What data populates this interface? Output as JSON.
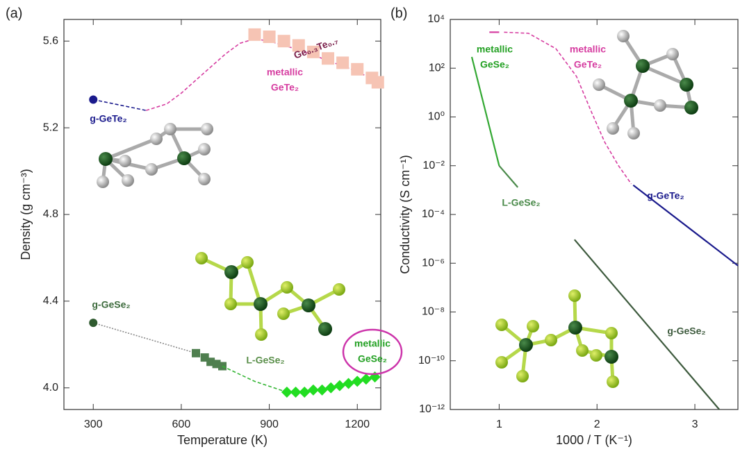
{
  "chart_data": [
    {
      "type": "line",
      "panel_label": "(a)",
      "xlabel": "Temperature (K)",
      "ylabel": "Density (g cm⁻³)",
      "xlim": [
        200,
        1280
      ],
      "ylim": [
        3.9,
        5.7
      ],
      "log_y": false,
      "xticks": [
        300,
        600,
        900,
        1200
      ],
      "yticks": [
        {
          "value": 4.0,
          "label": "4.0"
        },
        4.4,
        4.8,
        5.2,
        5.6
      ],
      "series": [
        {
          "color": "#1a1a8c",
          "dash": "dash",
          "marker": "none",
          "x": [
            300,
            480
          ],
          "values": [
            5.33,
            5.28
          ]
        },
        {
          "color": "#d63ca0",
          "dash": "dash",
          "marker": "none",
          "x": [
            480,
            550,
            600,
            650,
            700,
            750,
            800,
            850,
            900,
            1000,
            1100,
            1200,
            1270
          ],
          "values": [
            5.28,
            5.31,
            5.36,
            5.42,
            5.48,
            5.54,
            5.59,
            5.61,
            5.6,
            5.56,
            5.51,
            5.46,
            5.41
          ]
        },
        {
          "color": "#f6c4b4",
          "dash": "none",
          "marker": "square",
          "x": [
            850,
            900,
            950,
            1000,
            1050,
            1100,
            1150,
            1200,
            1250,
            1270
          ],
          "values": [
            5.63,
            5.62,
            5.6,
            5.58,
            5.55,
            5.52,
            5.5,
            5.47,
            5.43,
            5.41
          ]
        },
        {
          "color": "#1a1a8c",
          "dash": "none",
          "marker": "circle",
          "x": [
            300
          ],
          "values": [
            5.33
          ]
        },
        {
          "color": "#888888",
          "dash": "dot",
          "marker": "none",
          "x": [
            300,
            650
          ],
          "values": [
            4.3,
            4.16
          ]
        },
        {
          "color": "#2f5a2f",
          "dash": "none",
          "marker": "circle",
          "x": [
            300
          ],
          "values": [
            4.3
          ]
        },
        {
          "color": "#4f7f4f",
          "dash": "none",
          "marker": "square",
          "x": [
            650,
            680,
            700,
            720,
            740
          ],
          "values": [
            4.16,
            4.14,
            4.12,
            4.11,
            4.1
          ]
        },
        {
          "color": "#33b533",
          "dash": "dash",
          "marker": "none",
          "x": [
            740,
            850,
            960
          ],
          "values": [
            4.1,
            4.03,
            3.98
          ]
        },
        {
          "color": "#22dd22",
          "dash": "none",
          "marker": "diamond",
          "x": [
            960,
            990,
            1020,
            1050,
            1080,
            1110,
            1140,
            1170,
            1200,
            1230,
            1260
          ],
          "values": [
            3.98,
            3.98,
            3.98,
            3.99,
            3.99,
            4.0,
            4.01,
            4.02,
            4.03,
            4.04,
            4.05
          ]
        }
      ],
      "annotations": [
        {
          "lines": [
            "g-GeTe₂"
          ],
          "color": "#1a1a8c"
        },
        {
          "lines": [
            "Ge₀.₃Te₀.₇"
          ],
          "color": "#7a1f4a"
        },
        {
          "lines": [
            "metallic",
            "GeTe₂"
          ],
          "color": "#d63ca0"
        },
        {
          "lines": [
            "g-GeSe₂"
          ],
          "color": "#3d6b3d"
        },
        {
          "lines": [
            "L-GeSe₂"
          ],
          "color": "#5a8f4a"
        },
        {
          "lines": [
            "metallic",
            "GeSe₂"
          ],
          "color": "#22a022"
        }
      ]
    },
    {
      "type": "line",
      "panel_label": "(b)",
      "xlabel": "1000 / T (K⁻¹)",
      "ylabel": "Conductivity (S cm⁻¹)",
      "xlim": [
        0.5,
        3.44
      ],
      "ylim": [
        1e-12,
        10000
      ],
      "log_y": true,
      "xticks": [
        1,
        2,
        3
      ],
      "yticks": [
        {
          "value": 1e-12,
          "label": "10⁻¹²"
        },
        {
          "value": 1e-10,
          "label": "10⁻¹⁰"
        },
        {
          "value": 1e-08,
          "label": "10⁻⁸"
        },
        {
          "value": 1e-06,
          "label": "10⁻⁶"
        },
        {
          "value": 0.0001,
          "label": "10⁻⁴"
        },
        {
          "value": 0.01,
          "label": "10⁻²"
        },
        {
          "value": 1,
          "label": "10⁰"
        },
        {
          "value": 100,
          "label": "10²"
        },
        {
          "value": 10000,
          "label": "10⁴"
        }
      ],
      "series": [
        {
          "color": "#d63ca0",
          "dash": "none",
          "marker": "none",
          "x": [
            0.9,
            1.0
          ],
          "values": [
            3000,
            3000
          ]
        },
        {
          "color": "#d63ca0",
          "dash": "dash",
          "marker": "none",
          "x": [
            1.05,
            1.3,
            1.58,
            1.79,
            1.94,
            2.08,
            2.22,
            2.35
          ],
          "values": [
            3000,
            2700,
            630,
            46,
            1.7,
            0.09,
            0.01,
            0.0018
          ]
        },
        {
          "color": "#1a1a8c",
          "dash": "none",
          "marker": "none",
          "x": [
            2.37,
            3.44
          ],
          "values": [
            0.0016,
            8e-07
          ]
        },
        {
          "color": "#33a833",
          "dash": "none",
          "marker": "none",
          "x": [
            0.72,
            1.0
          ],
          "values": [
            290,
            0.01
          ]
        },
        {
          "color": "#4a8a4a",
          "dash": "none",
          "marker": "none",
          "x": [
            1.0,
            1.19
          ],
          "values": [
            0.01,
            0.0013
          ]
        },
        {
          "color": "#3d5a3d",
          "dash": "none",
          "marker": "none",
          "x": [
            1.77,
            3.25
          ],
          "values": [
            9.3e-06,
            1e-12
          ]
        }
      ],
      "annotations": [
        {
          "lines": [
            "metallic",
            "GeTe₂"
          ],
          "color": "#d63ca0"
        },
        {
          "lines": [
            "metallic",
            "GeSe₂"
          ],
          "color": "#22a022"
        },
        {
          "lines": [
            "L-GeSe₂"
          ],
          "color": "#4a8a4a"
        },
        {
          "lines": [
            "g-GeTe₂"
          ],
          "color": "#1a1a8c"
        },
        {
          "lines": [
            "g-GeSe₂"
          ],
          "color": "#3d5a3d"
        }
      ]
    }
  ]
}
